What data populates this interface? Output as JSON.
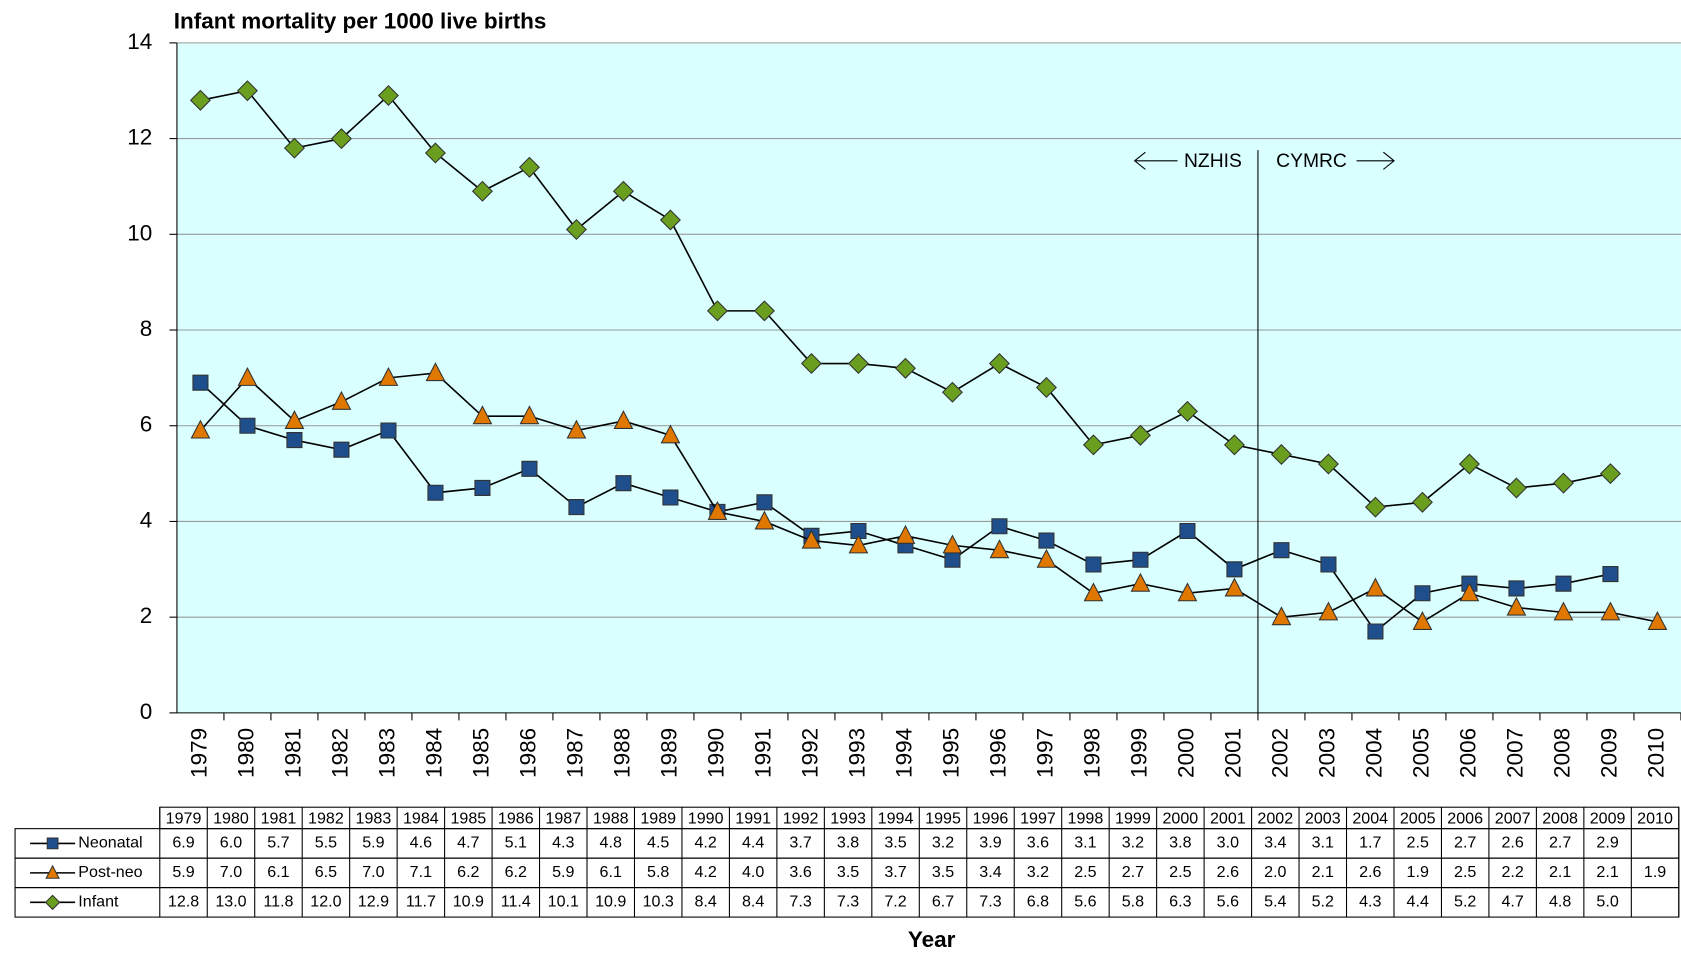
{
  "chart_data": {
    "type": "line",
    "title": "Infant mortality per 1000 live births",
    "x_label": "Year",
    "categories": [
      "1979",
      "1980",
      "1981",
      "1982",
      "1983",
      "1984",
      "1985",
      "1986",
      "1987",
      "1988",
      "1989",
      "1990",
      "1991",
      "1992",
      "1993",
      "1994",
      "1995",
      "1996",
      "1997",
      "1998",
      "1999",
      "2000",
      "2001",
      "2002",
      "2003",
      "2004",
      "2005",
      "2006",
      "2007",
      "2008",
      "2009",
      "2010"
    ],
    "ylim": [
      0,
      14
    ],
    "yticks": [
      0,
      2,
      4,
      6,
      8,
      10,
      12,
      14
    ],
    "grid": true,
    "annotations": [
      "NZHIS",
      "CYMRC"
    ],
    "series": [
      {
        "name": "Neonatal",
        "color": "#1f4e8c",
        "marker": "square",
        "values": [
          6.9,
          6.0,
          5.7,
          5.5,
          5.9,
          4.6,
          4.7,
          5.1,
          4.3,
          4.8,
          4.5,
          4.2,
          4.4,
          3.7,
          3.8,
          3.5,
          3.2,
          3.9,
          3.6,
          3.1,
          3.2,
          3.8,
          3.0,
          3.4,
          3.1,
          1.7,
          2.5,
          2.7,
          2.6,
          2.7,
          2.9,
          null
        ],
        "value_labels": [
          "6.9",
          "6.0",
          "5.7",
          "5.5",
          "5.9",
          "4.6",
          "4.7",
          "5.1",
          "4.3",
          "4.8",
          "4.5",
          "4.2",
          "4.4",
          "3.7",
          "3.8",
          "3.5",
          "3.2",
          "3.9",
          "3.6",
          "3.1",
          "3.2",
          "3.8",
          "3.0",
          "3.4",
          "3.1",
          "1.7",
          "2.5",
          "2.7",
          "2.6",
          "2.7",
          "2.9",
          null
        ]
      },
      {
        "name": "Post-neo",
        "color": "#e07800",
        "marker": "triangle",
        "values": [
          5.9,
          7.0,
          6.1,
          6.5,
          7.0,
          7.1,
          6.2,
          6.2,
          5.9,
          6.1,
          5.8,
          4.2,
          4.0,
          3.6,
          3.5,
          3.7,
          3.5,
          3.4,
          3.2,
          2.5,
          2.7,
          2.5,
          2.6,
          2.0,
          2.1,
          2.6,
          1.9,
          2.5,
          2.2,
          2.1,
          2.1,
          1.9
        ],
        "value_labels": [
          "5.9",
          "7.0",
          "6.1",
          "6.5",
          "7.0",
          "7.1",
          "6.2",
          "6.2",
          "5.9",
          "6.1",
          "5.8",
          "4.2",
          "4.0",
          "3.6",
          "3.5",
          "3.7",
          "3.5",
          "3.4",
          "3.2",
          "2.5",
          "2.7",
          "2.5",
          "2.6",
          "2.0",
          "2.1",
          "2.6",
          "1.9",
          "2.5",
          "2.2",
          "2.1",
          "2.1",
          "1.9"
        ]
      },
      {
        "name": "Infant",
        "color": "#6a9e1f",
        "marker": "diamond",
        "values": [
          12.8,
          13.0,
          11.8,
          12.0,
          12.9,
          11.7,
          10.9,
          11.4,
          10.1,
          10.9,
          10.3,
          8.4,
          8.4,
          7.3,
          7.3,
          7.2,
          6.7,
          7.3,
          6.8,
          5.6,
          5.8,
          6.3,
          5.6,
          5.4,
          5.2,
          4.3,
          4.4,
          5.2,
          4.7,
          4.8,
          5.0,
          null
        ],
        "value_labels": [
          "12.8",
          "13.0",
          "11.8",
          "12.0",
          "12.9",
          "11.7",
          "10.9",
          "11.4",
          "10.1",
          "10.9",
          "10.3",
          "8.4",
          "8.4",
          "7.3",
          "7.3",
          "7.2",
          "6.7",
          "7.3",
          "6.8",
          "5.6",
          "5.8",
          "6.3",
          "5.6",
          "5.4",
          "5.2",
          "4.3",
          "4.4",
          "5.2",
          "4.7",
          "4.8",
          "5.0",
          null
        ]
      }
    ]
  }
}
